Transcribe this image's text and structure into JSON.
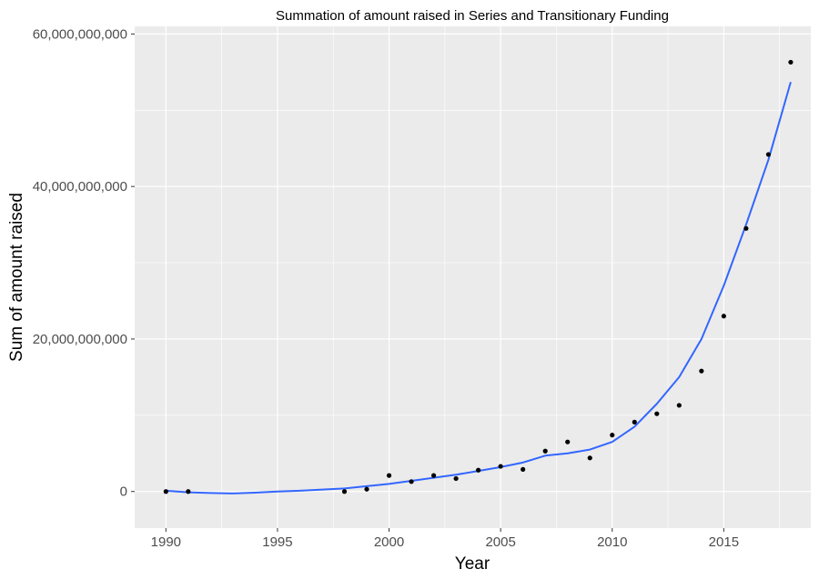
{
  "chart_data": {
    "type": "scatter",
    "title": "Summation of amount raised in Series and Transitionary Funding",
    "xlabel": "Year",
    "ylabel": "Sum of amount raised",
    "xlim": [
      1988.6,
      2018.9
    ],
    "ylim": [
      -4800000000,
      61000000000
    ],
    "x_major_ticks": [
      1990,
      1995,
      2000,
      2005,
      2010,
      2015
    ],
    "x_minor_ticks": [
      1992.5,
      1997.5,
      2002.5,
      2007.5,
      2012.5,
      2017.5
    ],
    "x_tick_labels": [
      "1990",
      "1995",
      "2000",
      "2005",
      "2010",
      "2015"
    ],
    "y_major_ticks": [
      0,
      20000000000,
      40000000000,
      60000000000
    ],
    "y_minor_ticks": [
      10000000000,
      30000000000,
      50000000000
    ],
    "y_tick_labels": [
      "0",
      "20,000,000,000",
      "40,000,000,000",
      "60,000,000,000"
    ],
    "grid": true,
    "series": [
      {
        "kind": "points",
        "color": "#000000",
        "x": [
          1990,
          1991,
          1998,
          1999,
          2000,
          2001,
          2002,
          2003,
          2004,
          2005,
          2006,
          2007,
          2008,
          2009,
          2010,
          2011,
          2012,
          2013,
          2014,
          2015,
          2016,
          2017,
          2018
        ],
        "y": [
          0,
          0,
          0,
          300000000,
          2100000000,
          1300000000,
          2100000000,
          1700000000,
          2800000000,
          3300000000,
          2900000000,
          5300000000,
          6500000000,
          4400000000,
          7400000000,
          9100000000,
          10200000000,
          11300000000,
          15800000000,
          23000000000,
          34500000000,
          44200000000,
          56300000000
        ]
      },
      {
        "kind": "smooth-line",
        "color": "#3366ff",
        "x": [
          1990,
          1991,
          1992,
          1993,
          1994,
          1995,
          1996,
          1997,
          1998,
          1999,
          2000,
          2001,
          2002,
          2003,
          2004,
          2005,
          2006,
          2007,
          2008,
          2009,
          2010,
          2011,
          2012,
          2013,
          2014,
          2015,
          2016,
          2017,
          2018
        ],
        "y": [
          100000000,
          -100000000,
          -200000000,
          -250000000,
          -150000000,
          0,
          100000000,
          250000000,
          400000000,
          700000000,
          1000000000,
          1400000000,
          1800000000,
          2200000000,
          2700000000,
          3200000000,
          3800000000,
          4700000000,
          5000000000,
          5500000000,
          6500000000,
          8500000000,
          11500000000,
          15000000000,
          20000000000,
          27000000000,
          35000000000,
          43500000000,
          53700000000
        ]
      }
    ]
  }
}
